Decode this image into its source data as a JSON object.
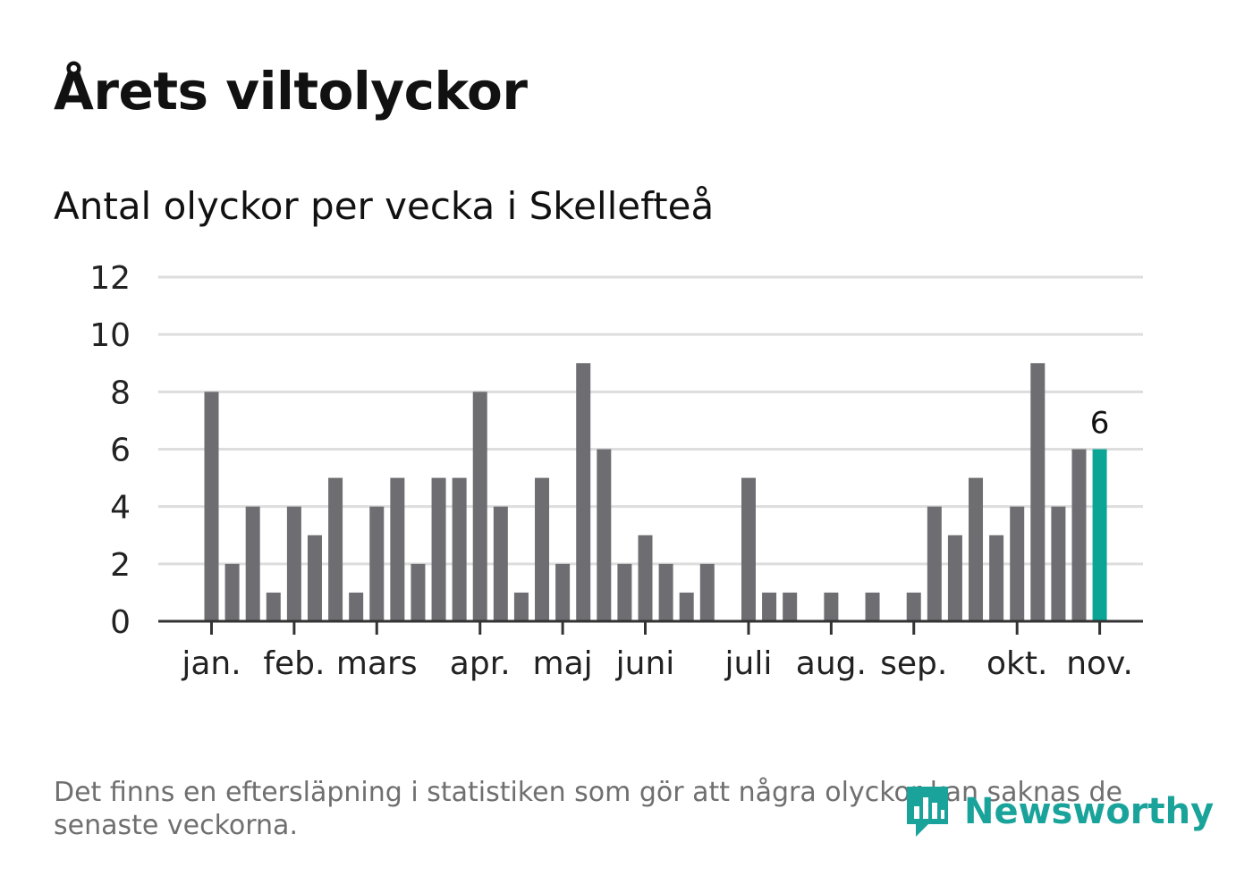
{
  "title": "Årets viltolyckor",
  "subtitle": "Antal olyckor per vecka i Skellefteå",
  "footnote": "Det finns en eftersläpning i statistiken som gör att några olyckor kan saknas de senaste veckorna.",
  "logo_text": "Newsworthy",
  "colors": {
    "bar": "#6e6d72",
    "highlight": "#0ba596",
    "grid": "#dddddd",
    "axis": "#333333",
    "text": "#222222"
  },
  "chart_data": {
    "type": "bar",
    "title": "Antal olyckor per vecka i Skellefteå",
    "ylim": [
      0,
      12
    ],
    "yticks": [
      "0",
      "2",
      "4",
      "6",
      "8",
      "10",
      "12"
    ],
    "values": [
      8,
      2,
      4,
      1,
      4,
      3,
      5,
      1,
      4,
      5,
      2,
      5,
      5,
      8,
      4,
      1,
      5,
      2,
      9,
      6,
      2,
      3,
      2,
      1,
      2,
      0,
      5,
      1,
      1,
      0,
      1,
      0,
      1,
      0,
      1,
      4,
      3,
      5,
      3,
      4,
      9,
      4,
      6,
      6
    ],
    "highlight_last": true,
    "highlight_label": "6",
    "month_labels": [
      {
        "label": "jan.",
        "week": 1
      },
      {
        "label": "feb.",
        "week": 5
      },
      {
        "label": "mars",
        "week": 9
      },
      {
        "label": "apr.",
        "week": 14
      },
      {
        "label": "maj",
        "week": 18
      },
      {
        "label": "juni",
        "week": 22
      },
      {
        "label": "juli",
        "week": 27
      },
      {
        "label": "aug.",
        "week": 31
      },
      {
        "label": "sep.",
        "week": 35
      },
      {
        "label": "okt.",
        "week": 40
      },
      {
        "label": "nov.",
        "week": 44
      }
    ]
  }
}
